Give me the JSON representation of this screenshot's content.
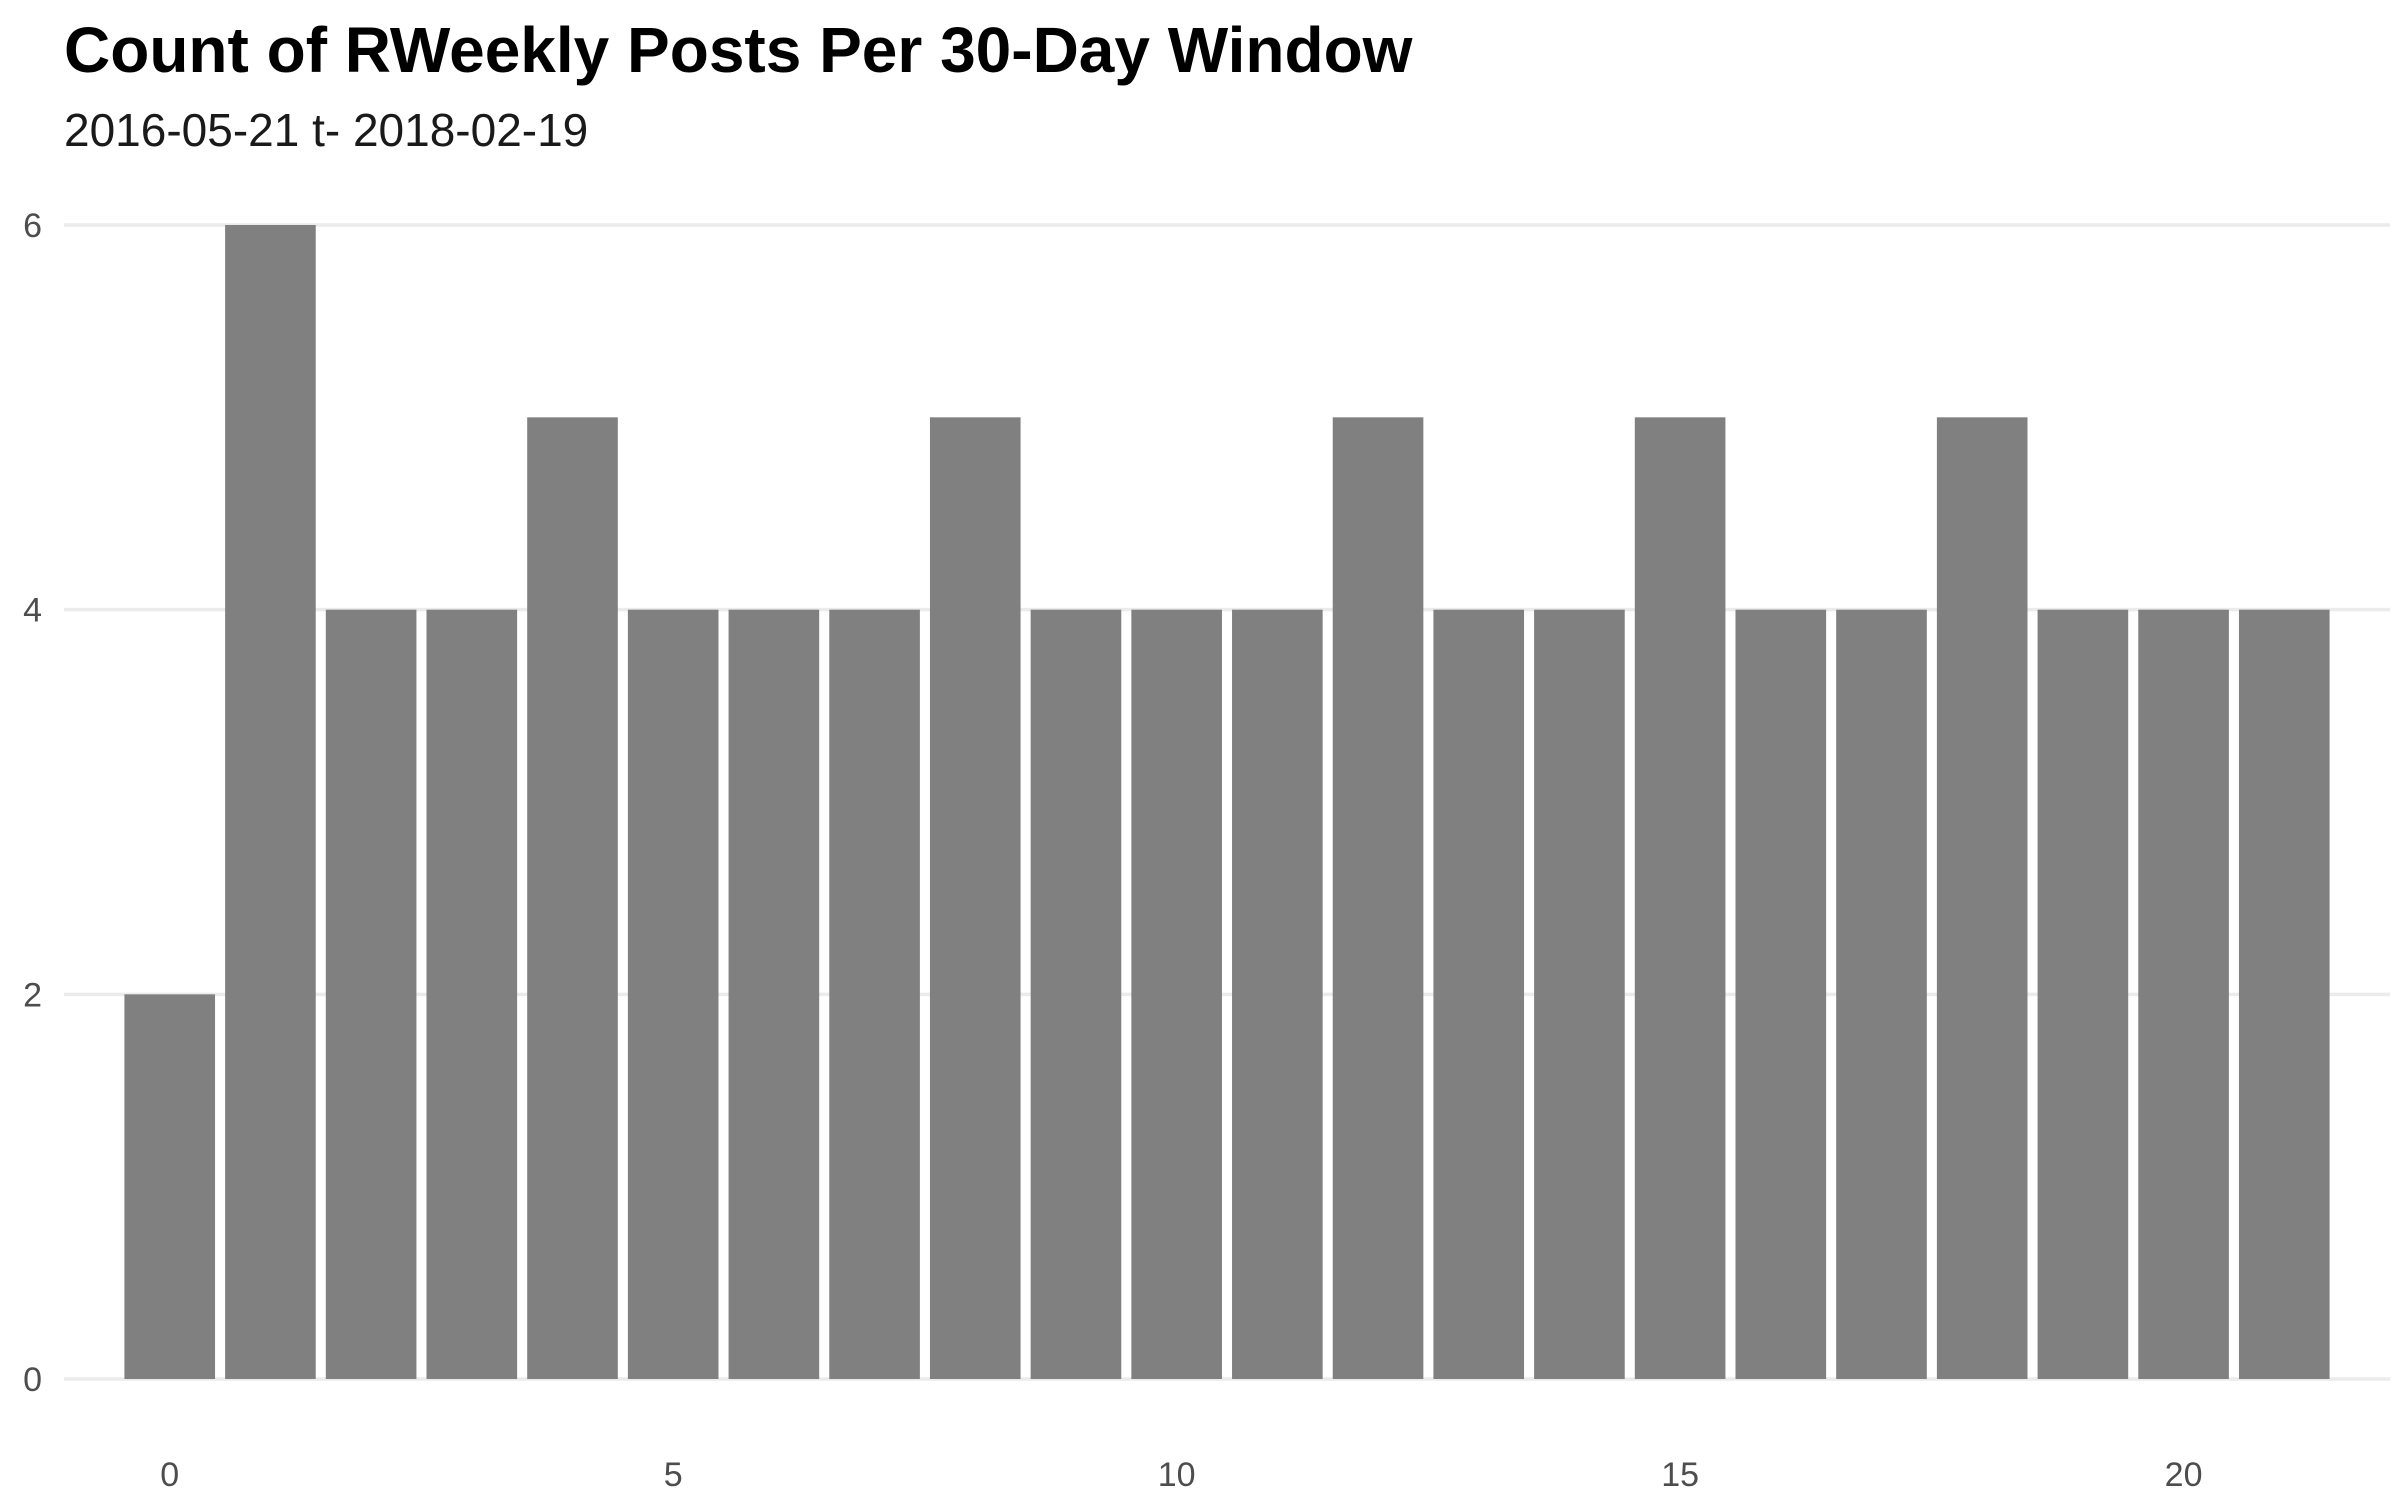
{
  "chart_data": {
    "type": "bar",
    "title": "Count of RWeekly Posts Per 30-Day Window",
    "subtitle": "2016-05-21 t- 2018-02-19",
    "xlabel": "",
    "ylabel": "",
    "x": [
      0,
      1,
      2,
      3,
      4,
      5,
      6,
      7,
      8,
      9,
      10,
      11,
      12,
      13,
      14,
      15,
      16,
      17,
      18,
      19,
      20,
      21
    ],
    "values": [
      2,
      6,
      4,
      4,
      5,
      4,
      4,
      4,
      5,
      4,
      4,
      4,
      5,
      4,
      4,
      5,
      4,
      4,
      5,
      4,
      4,
      4
    ],
    "xlim": [
      -1.05,
      22.05
    ],
    "ylim": [
      0,
      6
    ],
    "x_ticks": [
      0,
      5,
      10,
      15,
      20
    ],
    "y_ticks": [
      0,
      2,
      4,
      6
    ],
    "grid": true,
    "bar_color": "#808080",
    "grid_color": "#ebebeb",
    "background": "#ffffff"
  }
}
